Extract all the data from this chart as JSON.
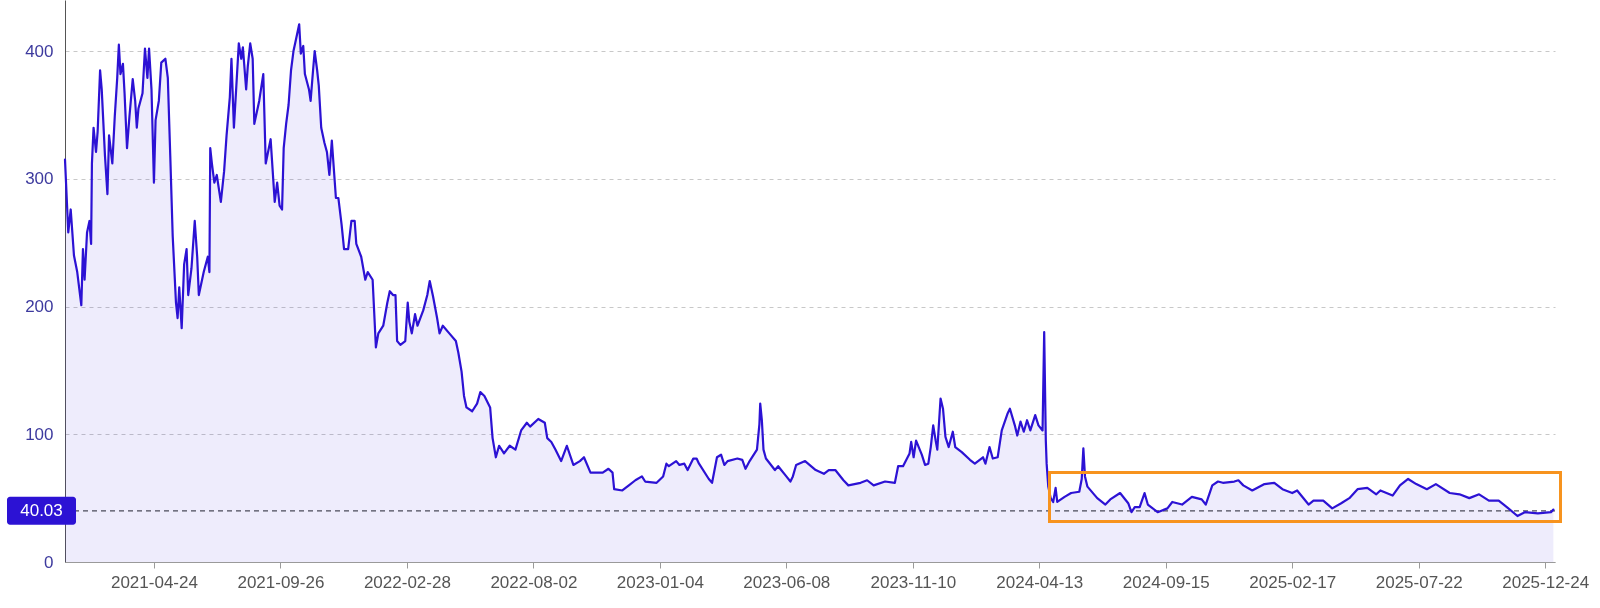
{
  "chart_data": {
    "type": "area",
    "color": "#2c12d4",
    "x": [
      "2021-01-05",
      "2021-01-09",
      "2021-01-12",
      "2021-01-16",
      "2021-01-20",
      "2021-01-25",
      "2021-01-27",
      "2021-01-29",
      "2021-02-01",
      "2021-02-04",
      "2021-02-06",
      "2021-02-07",
      "2021-02-09",
      "2021-02-12",
      "2021-02-14",
      "2021-02-17",
      "2021-02-19",
      "2021-02-23",
      "2021-02-26",
      "2021-02-28",
      "2021-03-04",
      "2021-03-07",
      "2021-03-10",
      "2021-03-12",
      "2021-03-14",
      "2021-03-17",
      "2021-03-19",
      "2021-03-22",
      "2021-03-25",
      "2021-03-29",
      "2021-04-01",
      "2021-04-03",
      "2021-04-05",
      "2021-04-10",
      "2021-04-13",
      "2021-04-16",
      "2021-04-18",
      "2021-04-21",
      "2021-04-24",
      "2021-04-26",
      "2021-04-30",
      "2021-05-03",
      "2021-05-08",
      "2021-05-11",
      "2021-05-14",
      "2021-05-17",
      "2021-05-21",
      "2021-05-23",
      "2021-05-25",
      "2021-05-28",
      "2021-05-31",
      "2021-06-03",
      "2021-06-05",
      "2021-06-09",
      "2021-06-13",
      "2021-06-16",
      "2021-06-18",
      "2021-06-24",
      "2021-06-29",
      "2021-07-01",
      "2021-07-02",
      "2021-07-04",
      "2021-07-07",
      "2021-07-10",
      "2021-07-15",
      "2021-07-19",
      "2021-07-22",
      "2021-07-26",
      "2021-07-28",
      "2021-07-31",
      "2021-08-03",
      "2021-08-06",
      "2021-08-09",
      "2021-08-11",
      "2021-08-15",
      "2021-08-17",
      "2021-08-20",
      "2021-08-23",
      "2021-08-25",
      "2021-08-31",
      "2021-09-05",
      "2021-09-08",
      "2021-09-14",
      "2021-09-19",
      "2021-09-22",
      "2021-09-25",
      "2021-09-28",
      "2021-09-30",
      "2021-10-03",
      "2021-10-06",
      "2021-10-09",
      "2021-10-12",
      "2021-10-14",
      "2021-10-19",
      "2021-10-21",
      "2021-10-24",
      "2021-10-26",
      "2021-10-31",
      "2021-11-02",
      "2021-11-05",
      "2021-11-07",
      "2021-11-10",
      "2021-11-12",
      "2021-11-15",
      "2021-11-19",
      "2021-11-22",
      "2021-11-25",
      "2021-11-28",
      "2021-12-03",
      "2021-12-06",
      "2021-12-10",
      "2021-12-13",
      "2021-12-18",
      "2021-12-22",
      "2021-12-26",
      "2021-12-28",
      "2022-01-03",
      "2022-01-08",
      "2022-01-11",
      "2022-01-17",
      "2022-01-21",
      "2022-01-24",
      "2022-01-30",
      "2022-02-04",
      "2022-02-07",
      "2022-02-11",
      "2022-02-14",
      "2022-02-16",
      "2022-02-20",
      "2022-02-26",
      "2022-03-01",
      "2022-03-03",
      "2022-03-06",
      "2022-03-10",
      "2022-03-13",
      "2022-03-20",
      "2022-03-25",
      "2022-03-28",
      "2022-04-01",
      "2022-04-06",
      "2022-04-09",
      "2022-04-13",
      "2022-04-21",
      "2022-04-29",
      "2022-05-02",
      "2022-05-06",
      "2022-05-09",
      "2022-05-12",
      "2022-05-19",
      "2022-05-25",
      "2022-05-29",
      "2022-06-03",
      "2022-06-10",
      "2022-06-13",
      "2022-06-17",
      "2022-06-21",
      "2022-06-27",
      "2022-07-04",
      "2022-07-11",
      "2022-07-18",
      "2022-07-25",
      "2022-07-29",
      "2022-08-08",
      "2022-08-16",
      "2022-08-19",
      "2022-08-24",
      "2022-08-29",
      "2022-09-05",
      "2022-09-12",
      "2022-09-20",
      "2022-09-28",
      "2022-10-03",
      "2022-10-11",
      "2022-10-26",
      "2022-11-02",
      "2022-11-07",
      "2022-11-09",
      "2022-11-19",
      "2022-11-27",
      "2022-12-05",
      "2022-12-13",
      "2022-12-17",
      "2022-12-31",
      "2023-01-08",
      "2023-01-12",
      "2023-01-15",
      "2023-01-24",
      "2023-01-28",
      "2023-02-03",
      "2023-02-07",
      "2023-02-14",
      "2023-02-18",
      "2023-02-21",
      "2023-03-05",
      "2023-03-09",
      "2023-03-15",
      "2023-03-20",
      "2023-03-24",
      "2023-03-28",
      "2023-04-09",
      "2023-04-15",
      "2023-04-19",
      "2023-04-24",
      "2023-05-03",
      "2023-05-06",
      "2023-05-07",
      "2023-05-09",
      "2023-05-11",
      "2023-05-14",
      "2023-05-25",
      "2023-05-29",
      "2023-06-08",
      "2023-06-13",
      "2023-06-16",
      "2023-06-20",
      "2023-07-01",
      "2023-07-14",
      "2023-07-24",
      "2023-07-30",
      "2023-08-07",
      "2023-08-17",
      "2023-08-23",
      "2023-09-07",
      "2023-09-15",
      "2023-09-23",
      "2023-10-07",
      "2023-10-19",
      "2023-10-23",
      "2023-10-29",
      "2023-11-06",
      "2023-11-08",
      "2023-11-11",
      "2023-11-14",
      "2023-11-21",
      "2023-11-25",
      "2023-11-29",
      "2023-12-02",
      "2023-12-05",
      "2023-12-08",
      "2023-12-10",
      "2023-12-14",
      "2023-12-17",
      "2023-12-20",
      "2023-12-24",
      "2023-12-29",
      "2024-01-01",
      "2024-01-09",
      "2024-01-19",
      "2024-01-25",
      "2024-02-04",
      "2024-02-07",
      "2024-02-12",
      "2024-02-16",
      "2024-02-22",
      "2024-02-27",
      "2024-03-05",
      "2024-03-08",
      "2024-03-14",
      "2024-03-17",
      "2024-03-21",
      "2024-03-25",
      "2024-03-29",
      "2024-04-02",
      "2024-04-08",
      "2024-04-12",
      "2024-04-17",
      "2024-04-19",
      "2024-04-21",
      "2024-04-22",
      "2024-04-24",
      "2024-04-27",
      "2024-04-30",
      "2024-05-03",
      "2024-05-05",
      "2024-05-14",
      "2024-05-22",
      "2024-06-01",
      "2024-06-04",
      "2024-06-06",
      "2024-06-08",
      "2024-06-11",
      "2024-06-23",
      "2024-07-03",
      "2024-07-09",
      "2024-07-21",
      "2024-07-31",
      "2024-08-04",
      "2024-08-08",
      "2024-08-14",
      "2024-08-20",
      "2024-08-24",
      "2024-09-05",
      "2024-09-17",
      "2024-09-23",
      "2024-10-05",
      "2024-10-17",
      "2024-10-29",
      "2024-11-03",
      "2024-11-11",
      "2024-11-18",
      "2024-11-24",
      "2024-12-08",
      "2024-12-13",
      "2024-12-19",
      "2024-12-30",
      "2025-01-14",
      "2025-01-26",
      "2025-02-05",
      "2025-02-17",
      "2025-02-23",
      "2025-03-09",
      "2025-03-15",
      "2025-03-27",
      "2025-04-07",
      "2025-04-18",
      "2025-04-28",
      "2025-05-08",
      "2025-05-20",
      "2025-05-31",
      "2025-06-05",
      "2025-06-20",
      "2025-06-29",
      "2025-07-09",
      "2025-07-19",
      "2025-08-01",
      "2025-08-12",
      "2025-08-29",
      "2025-09-10",
      "2025-09-22",
      "2025-10-04",
      "2025-10-16",
      "2025-10-28",
      "2025-11-07",
      "2025-11-20",
      "2025-11-29",
      "2025-12-15",
      "2025-12-31",
      "2026-01-03"
    ],
    "values": [
      315,
      258,
      276,
      240,
      227,
      201,
      245,
      221,
      258,
      267,
      249,
      312,
      340,
      321,
      337,
      385,
      370,
      318,
      288,
      334,
      312,
      349,
      379,
      405,
      382,
      390,
      367,
      324,
      349,
      378,
      361,
      340,
      355,
      367,
      402,
      379,
      402,
      370,
      297,
      346,
      361,
      391,
      394,
      379,
      318,
      255,
      203,
      191,
      215,
      183,
      233,
      245,
      209,
      230,
      267,
      239,
      209,
      227,
      239,
      227,
      324,
      312,
      297,
      303,
      282,
      306,
      334,
      364,
      394,
      340,
      373,
      406,
      394,
      403,
      370,
      388,
      406,
      394,
      343,
      361,
      382,
      312,
      331,
      282,
      297,
      279,
      276,
      324,
      343,
      358,
      385,
      400,
      406,
      421,
      398,
      404,
      382,
      370,
      361,
      385,
      400,
      385,
      373,
      340,
      328,
      321,
      303,
      330,
      285,
      285,
      264,
      245,
      245,
      267,
      267,
      249,
      239,
      221,
      227,
      221,
      168,
      179,
      185,
      203,
      212,
      209,
      209,
      173,
      170,
      173,
      203,
      188,
      179,
      194,
      185,
      197,
      209,
      220,
      208,
      191,
      179,
      185,
      179,
      173,
      164,
      149,
      130,
      121,
      118,
      124,
      133,
      130,
      121,
      97,
      82,
      91,
      85,
      91,
      88,
      103,
      109,
      106,
      112,
      109,
      97,
      94,
      88,
      79,
      91,
      76,
      79,
      82,
      70,
      70,
      73,
      70,
      57,
      56,
      60,
      64,
      67,
      63,
      62,
      67,
      77,
      75,
      79,
      76,
      77,
      72,
      81,
      81,
      77,
      65,
      62,
      82,
      84,
      76,
      79,
      81,
      80,
      73,
      79,
      88,
      108,
      124,
      111,
      88,
      81,
      72,
      75,
      67,
      63,
      67,
      76,
      79,
      72,
      69,
      72,
      72,
      64,
      60,
      62,
      64,
      60,
      63,
      62,
      75,
      75,
      85,
      94,
      82,
      95,
      84,
      76,
      77,
      90,
      107,
      95,
      88,
      128,
      120,
      98,
      90,
      102,
      90,
      86,
      80,
      77,
      82,
      77,
      90,
      81,
      82,
      103,
      116,
      120,
      107,
      99,
      110,
      102,
      111,
      103,
      115,
      107,
      103,
      180,
      95,
      77,
      59,
      50,
      47,
      58,
      47,
      51,
      54,
      55,
      65,
      89,
      67,
      59,
      50,
      45,
      49,
      54,
      46,
      39,
      43,
      43,
      54,
      45,
      39,
      42,
      47,
      45,
      51,
      49,
      45,
      60,
      63,
      62,
      63,
      64,
      60,
      56,
      61,
      62,
      57,
      54,
      56,
      45,
      48,
      48,
      42,
      46,
      50,
      57,
      58,
      53,
      56,
      52,
      60,
      65,
      61,
      57,
      61,
      54,
      53,
      50,
      53,
      48,
      48,
      43,
      36,
      39,
      38,
      39,
      41
    ],
    "xlim": [
      "2021-01-05",
      "2026-01-05"
    ],
    "xticks": [
      "2021-04-24",
      "2021-09-26",
      "2022-02-28",
      "2022-08-02",
      "2023-01-04",
      "2023-06-08",
      "2023-11-10",
      "2024-04-13",
      "2024-09-15",
      "2025-02-17",
      "2025-07-22",
      "2025-12-24"
    ],
    "ylim": [
      0,
      440
    ],
    "yticks": [
      0,
      100,
      200,
      300,
      400
    ],
    "grid": "y",
    "ref_lines": [
      {
        "axis": "y",
        "value": 40.03,
        "label": "40.03",
        "color": "#4a4a58",
        "line_style": "dashed"
      }
    ]
  }
}
